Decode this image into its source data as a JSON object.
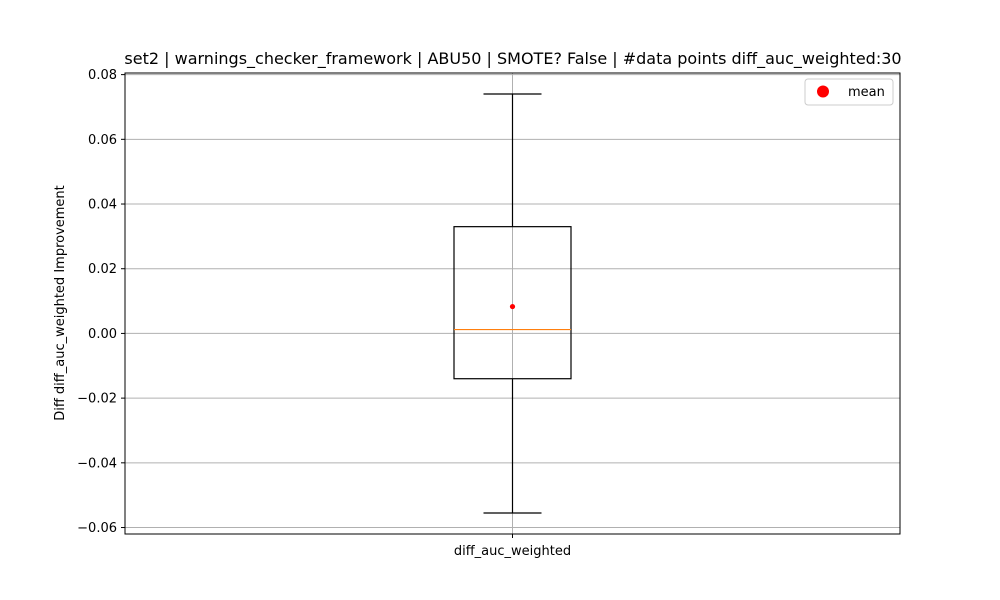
{
  "chart_data": {
    "type": "box",
    "title": "set2 | warnings_checker_framework | ABU50 | SMOTE? False | #data points diff_auc_weighted:30",
    "xlabel": "",
    "ylabel": "Diff diff_auc_weighted Improvement",
    "categories": [
      "diff_auc_weighted"
    ],
    "ylim": [
      -0.062,
      0.0805
    ],
    "yticks": [
      -0.06,
      -0.04,
      -0.02,
      0.0,
      0.02,
      0.04,
      0.06,
      0.08
    ],
    "ytick_labels": [
      "−0.06",
      "−0.04",
      "−0.02",
      "0.00",
      "0.02",
      "0.04",
      "0.06",
      "0.08"
    ],
    "grid": true,
    "legend": {
      "placement": "top-right",
      "entries": [
        {
          "label": "mean",
          "color": "#ff0000",
          "marker": "circle"
        }
      ]
    },
    "boxes": [
      {
        "category": "diff_auc_weighted",
        "whisker_low": -0.0555,
        "q1": -0.014,
        "median": 0.0012,
        "q3": 0.033,
        "whisker_high": 0.074,
        "mean": 0.0083
      }
    ],
    "colors": {
      "box": "#000000",
      "median": "#ff7f0e",
      "mean": "#ff0000",
      "grid": "#b0b0b0"
    }
  }
}
